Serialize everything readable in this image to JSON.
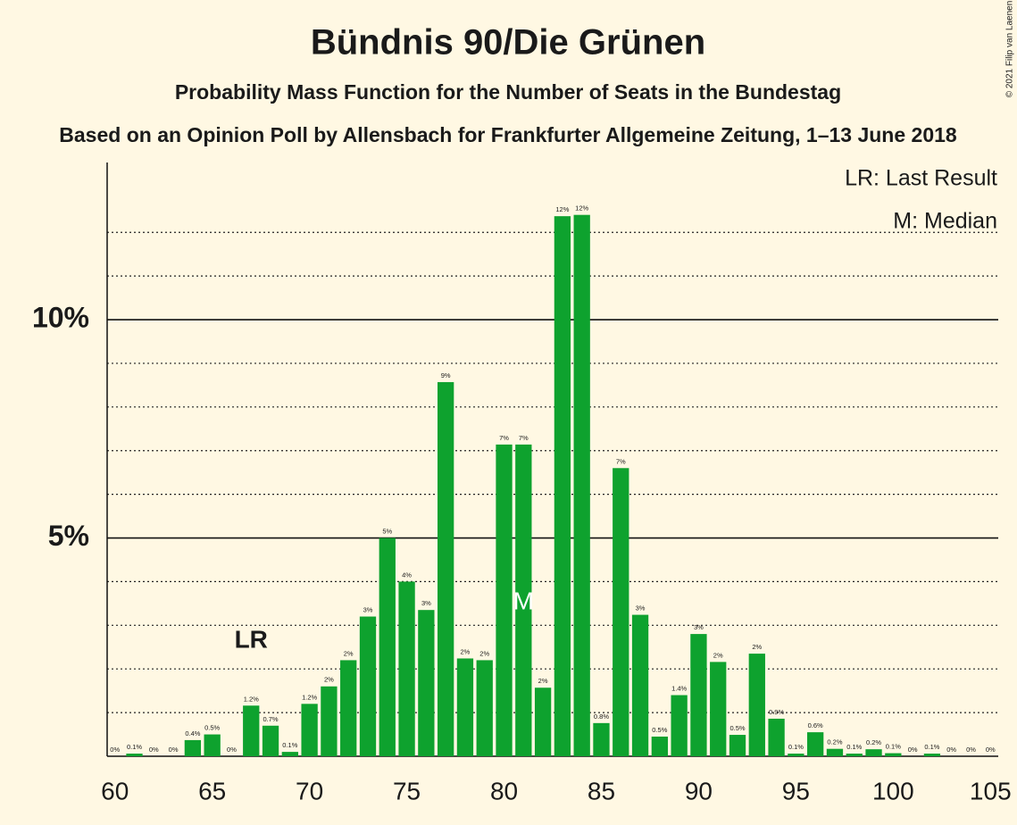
{
  "chart_data": {
    "type": "bar",
    "title": "Bündnis 90/Die Grünen",
    "subtitle": "Probability Mass Function for the Number of Seats in the Bundestag",
    "caption": "Based on an Opinion Poll by Allensbach for Frankfurter Allgemeine Zeitung, 1–13 June 2018",
    "credit": "© 2021 Filip van Laenen",
    "legend": [
      "LR: Last Result",
      "M: Median"
    ],
    "last_result": {
      "seat": 67,
      "label": "LR"
    },
    "median": {
      "seat": 81,
      "label": "M"
    },
    "color": "#0ea22e",
    "x": [
      60,
      61,
      62,
      63,
      64,
      65,
      66,
      67,
      68,
      69,
      70,
      71,
      72,
      73,
      74,
      75,
      76,
      77,
      78,
      79,
      80,
      81,
      82,
      83,
      84,
      85,
      86,
      87,
      88,
      89,
      90,
      91,
      92,
      93,
      94,
      95,
      96,
      97,
      98,
      99,
      100,
      101,
      102,
      103,
      104,
      105
    ],
    "values": [
      0,
      0.06,
      0,
      0,
      0.37,
      0.5,
      0,
      1.16,
      0.7,
      0.1,
      1.2,
      1.6,
      2.2,
      3.2,
      5.0,
      4.0,
      3.35,
      8.57,
      2.24,
      2.2,
      7.14,
      7.14,
      1.57,
      12.37,
      12.4,
      0.76,
      6.6,
      3.24,
      0.45,
      1.4,
      2.8,
      2.16,
      0.49,
      2.35,
      0.86,
      0.06,
      0.55,
      0.17,
      0.06,
      0.16,
      0.07,
      0,
      0.06,
      0,
      0,
      0
    ],
    "value_labels": [
      "0%",
      "0.1%",
      "0%",
      "0%",
      "0.4%",
      "0.5%",
      "0%",
      "1.2%",
      "0.7%",
      "0.1%",
      "1.2%",
      "2%",
      "2%",
      "3%",
      "5%",
      "4%",
      "3%",
      "9%",
      "2%",
      "2%",
      "7%",
      "7%",
      "2%",
      "12%",
      "12%",
      "0.8%",
      "7%",
      "3%",
      "0.5%",
      "1.4%",
      "3%",
      "2%",
      "0.5%",
      "2%",
      "0.9%",
      "0.1%",
      "0.6%",
      "0.2%",
      "0.1%",
      "0.2%",
      "0.1%",
      "0%",
      "0.1%",
      "0%",
      "0%",
      "0%"
    ],
    "xlim": [
      59.6,
      105.4
    ],
    "xticks": [
      60,
      65,
      70,
      75,
      80,
      85,
      90,
      95,
      100,
      105
    ],
    "ylim": [
      0,
      13.6
    ],
    "yticks": [
      {
        "value": 5,
        "label": "5%"
      },
      {
        "value": 10,
        "label": "10%"
      }
    ],
    "minor_yticks": [
      1,
      2,
      3,
      4,
      6,
      7,
      8,
      9,
      11,
      12
    ]
  }
}
